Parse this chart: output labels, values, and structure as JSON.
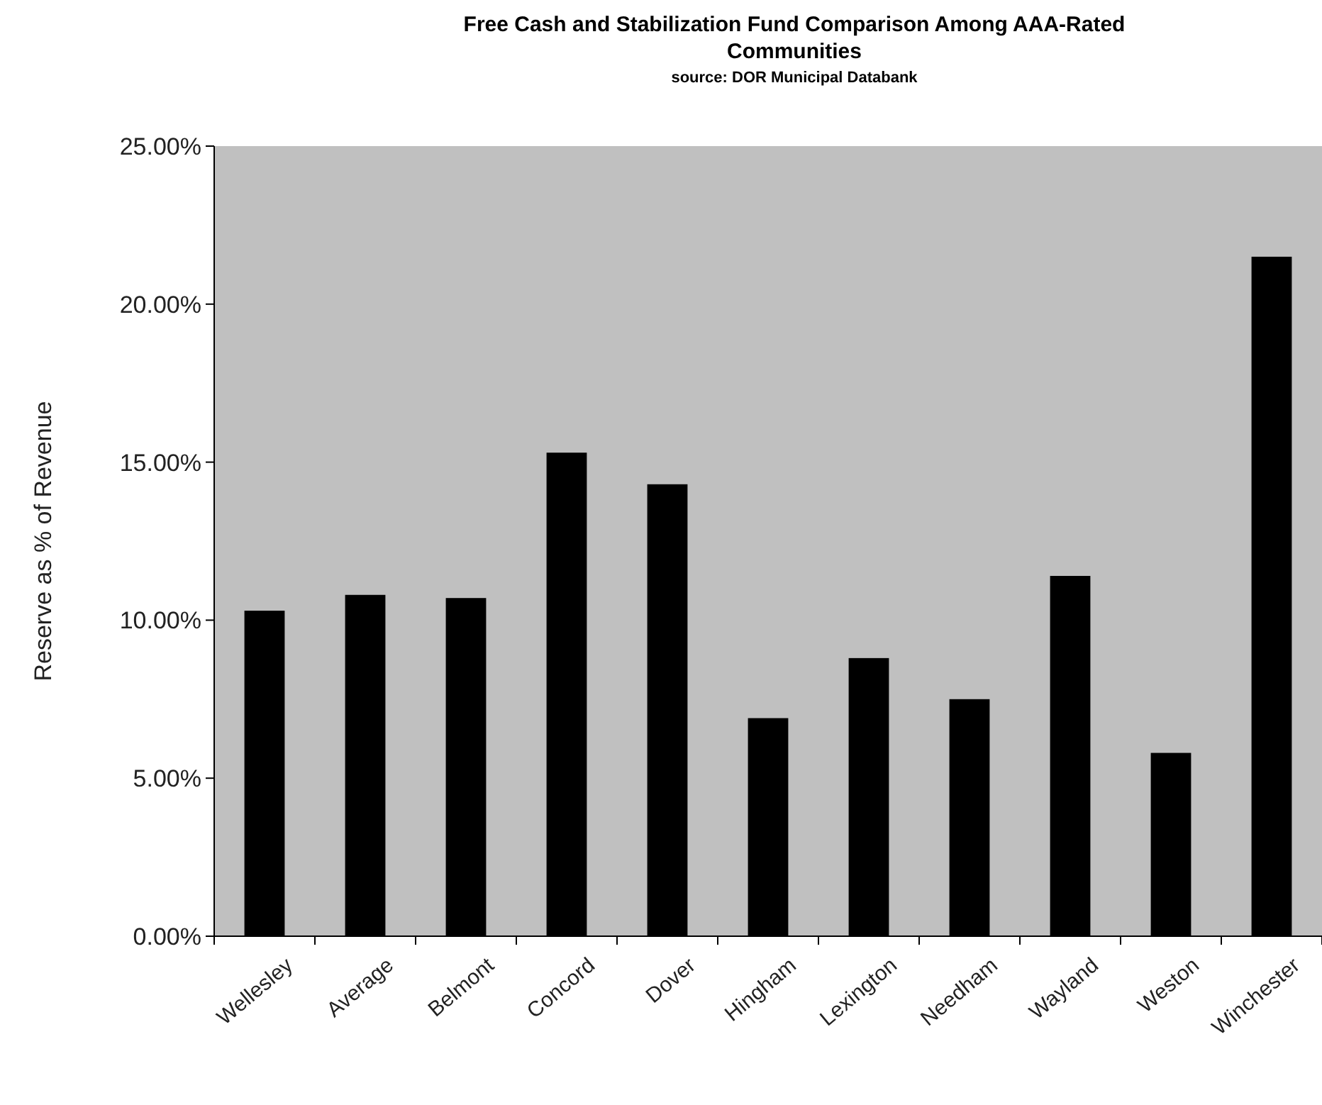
{
  "chart_data": {
    "type": "bar",
    "title": "Free Cash and Stabilization Fund Comparison Among AAA-Rated Communities",
    "subtitle": "source: DOR Municipal Databank",
    "ylabel": "Reserve as % of Revenue",
    "categories": [
      "Wellesley",
      "Average",
      "Belmont",
      "Concord",
      "Dover",
      "Hingham",
      "Lexington",
      "Needham",
      "Wayland",
      "Weston",
      "Winchester"
    ],
    "values": [
      10.3,
      10.8,
      10.7,
      15.3,
      14.3,
      6.9,
      8.8,
      7.5,
      11.4,
      5.8,
      21.5
    ],
    "color": "#000000",
    "ylim": [
      0,
      25
    ],
    "yticks": [
      {
        "value": 0,
        "label": "0.00%"
      },
      {
        "value": 5,
        "label": "5.00%"
      },
      {
        "value": 10,
        "label": "10.00%"
      },
      {
        "value": 15,
        "label": "15.00%"
      },
      {
        "value": 20,
        "label": "20.00%"
      },
      {
        "value": 25,
        "label": "25.00%"
      }
    ],
    "grid": false
  }
}
